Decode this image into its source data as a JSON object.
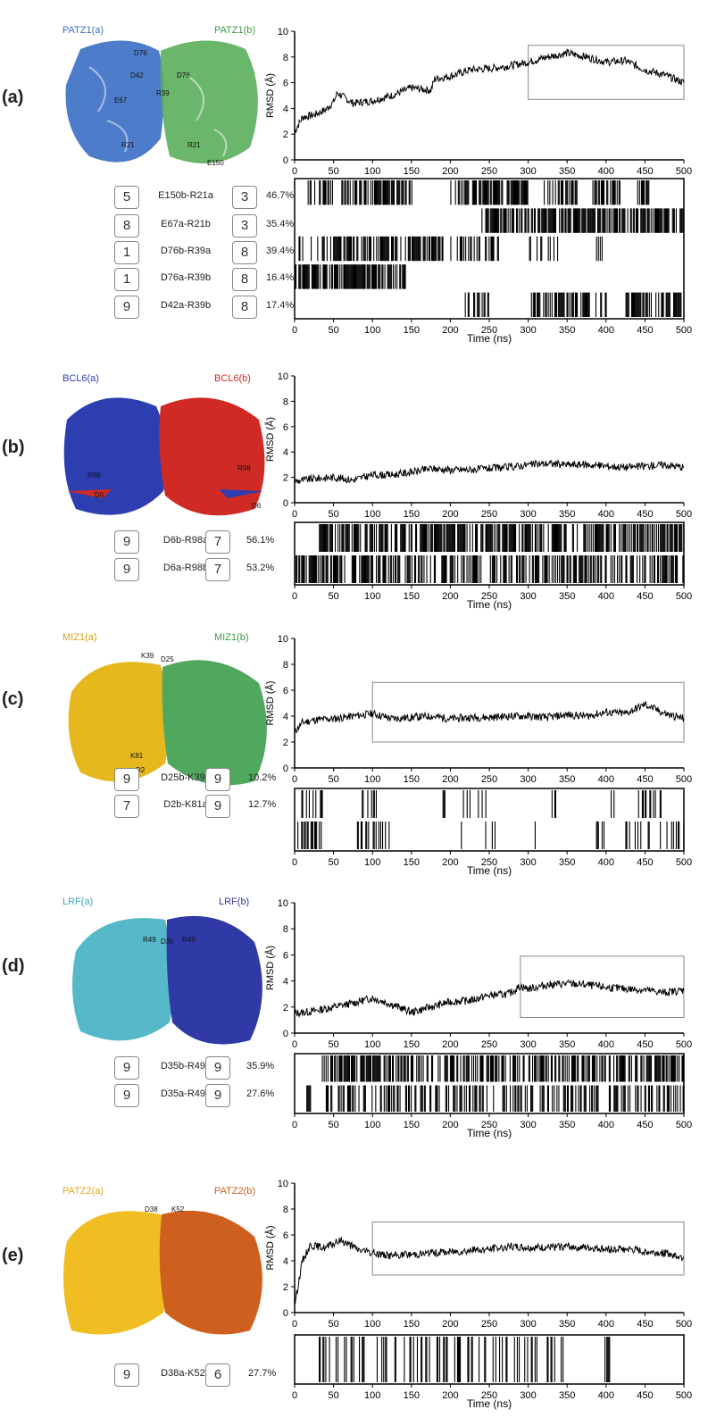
{
  "panels": [
    {
      "id": "a",
      "label": "(a)",
      "chain_a": {
        "name": "PATZ1(a)",
        "color": "#3a6fc4"
      },
      "chain_b": {
        "name": "PATZ1(b)",
        "color": "#5aae5a"
      },
      "residue_labels": [
        "D76",
        "D42",
        "D76",
        "R39",
        "E67",
        "R21",
        "R21",
        "E150"
      ],
      "bridges": [
        {
          "name": "E150b-R21a",
          "box_left": "5",
          "box_right": "3",
          "pct": "46.7%"
        },
        {
          "name": "E67a-R21b",
          "box_left": "8",
          "box_right": "3",
          "pct": "35.4%"
        },
        {
          "name": "D76b-R39a",
          "box_left": "1",
          "box_right": "8",
          "pct": "39.4%"
        },
        {
          "name": "D76a-R39b",
          "box_left": "1",
          "box_right": "8",
          "pct": "16.4%"
        },
        {
          "name": "D42a-R39b",
          "box_left": "9",
          "box_right": "8",
          "pct": "17.4%"
        }
      ]
    },
    {
      "id": "b",
      "label": "(b)",
      "chain_a": {
        "name": "BCL6(a)",
        "color": "#2d3fb0"
      },
      "chain_b": {
        "name": "BCL6(b)",
        "color": "#d02a24"
      },
      "residue_labels": [
        "R98",
        "D6",
        "R98",
        "D6"
      ],
      "bridges": [
        {
          "name": "D6b-R98a",
          "box_left": "9",
          "box_right": "7",
          "pct": "56.1%"
        },
        {
          "name": "D6a-R98b",
          "box_left": "9",
          "box_right": "7",
          "pct": "53.2%"
        }
      ]
    },
    {
      "id": "c",
      "label": "(c)",
      "chain_a": {
        "name": "MIZ1(a)",
        "color": "#e6b81e"
      },
      "chain_b": {
        "name": "MIZ1(b)",
        "color": "#4fa85e"
      },
      "residue_labels": [
        "K39",
        "D25",
        "K81",
        "D2"
      ],
      "bridges": [
        {
          "name": "D25b-K39a",
          "box_left": "9",
          "box_right": "9",
          "pct": "10.2%"
        },
        {
          "name": "D2b-K81a",
          "box_left": "7",
          "box_right": "9",
          "pct": "12.7%"
        }
      ]
    },
    {
      "id": "d",
      "label": "(d)",
      "chain_a": {
        "name": "LRF(a)",
        "color": "#55b9c9"
      },
      "chain_b": {
        "name": "LRF(b)",
        "color": "#2f3aa6"
      },
      "residue_labels": [
        "R49",
        "D35",
        "R49"
      ],
      "bridges": [
        {
          "name": "D35b-R49a",
          "box_left": "9",
          "box_right": "9",
          "pct": "35.9%"
        },
        {
          "name": "D35a-R49b",
          "box_left": "9",
          "box_right": "9",
          "pct": "27.6%"
        }
      ]
    },
    {
      "id": "e",
      "label": "(e)",
      "chain_a": {
        "name": "PATZ2(a)",
        "color": "#f0be22"
      },
      "chain_b": {
        "name": "PATZ2(b)",
        "color": "#cf5f1e"
      },
      "residue_labels": [
        "D38",
        "K52"
      ],
      "bridges": [
        {
          "name": "D38a-K52b",
          "box_left": "9",
          "box_right": "6",
          "pct": "27.7%"
        }
      ]
    }
  ],
  "chart_data": [
    {
      "panel": "a",
      "type": "line",
      "ylabel": "RMSD (Å)",
      "xlim": [
        0,
        500
      ],
      "ylim": [
        0,
        10
      ],
      "xticks": [
        0,
        50,
        100,
        150,
        200,
        250,
        300,
        350,
        400,
        450,
        500
      ],
      "yticks": [
        0,
        2,
        4,
        6,
        8,
        10
      ],
      "x": [
        0,
        10,
        25,
        40,
        50,
        55,
        75,
        100,
        125,
        150,
        175,
        180,
        200,
        225,
        250,
        275,
        300,
        325,
        350,
        375,
        400,
        425,
        450,
        475,
        500
      ],
      "y": [
        2.2,
        3.3,
        3.5,
        3.9,
        4.5,
        5.2,
        4.4,
        4.6,
        5.0,
        5.6,
        5.4,
        6.3,
        6.5,
        7.0,
        7.1,
        7.3,
        7.6,
        8.0,
        8.3,
        8.0,
        7.6,
        7.7,
        7.0,
        6.6,
        6.0
      ],
      "highlight_box": {
        "x": [
          300,
          500
        ],
        "y": [
          4.7,
          8.9
        ]
      }
    },
    {
      "panel": "a",
      "type": "heatmap",
      "xlabel": "Time (ns)",
      "xlim": [
        0,
        500
      ],
      "xticks": [
        0,
        50,
        100,
        150,
        200,
        250,
        300,
        350,
        400,
        450,
        500
      ],
      "rows": [
        {
          "name": "E150b-R21a",
          "segments": [
            [
              12,
              50,
              0.65
            ],
            [
              60,
              150,
              0.6
            ],
            [
              200,
              225,
              0.55
            ],
            [
              228,
              300,
              0.75
            ],
            [
              320,
              365,
              0.55
            ],
            [
              380,
              420,
              0.5
            ],
            [
              440,
              455,
              0.5
            ]
          ]
        },
        {
          "name": "E67a-R21b",
          "segments": [
            [
              240,
              500,
              0.7
            ]
          ]
        },
        {
          "name": "D76b-R39a",
          "segments": [
            [
              5,
              30,
              0.3
            ],
            [
              35,
              190,
              0.7
            ],
            [
              200,
              262,
              0.45
            ],
            [
              300,
              340,
              0.3
            ],
            [
              380,
              395,
              0.3
            ]
          ]
        },
        {
          "name": "D76a-R39b",
          "segments": [
            [
              0,
              142,
              0.8
            ]
          ]
        },
        {
          "name": "D42a-R39b",
          "segments": [
            [
              215,
              250,
              0.3
            ],
            [
              300,
              400,
              0.6
            ],
            [
              425,
              500,
              0.55
            ]
          ]
        }
      ]
    },
    {
      "panel": "b",
      "type": "line",
      "ylabel": "RMSD (Å)",
      "xlim": [
        0,
        500
      ],
      "ylim": [
        0,
        10
      ],
      "xticks": [
        0,
        50,
        100,
        150,
        200,
        250,
        300,
        350,
        400,
        450,
        500
      ],
      "yticks": [
        0,
        2,
        4,
        6,
        8,
        10
      ],
      "x": [
        0,
        25,
        50,
        75,
        100,
        125,
        150,
        175,
        200,
        225,
        250,
        275,
        300,
        325,
        350,
        375,
        400,
        425,
        450,
        475,
        500
      ],
      "y": [
        1.7,
        1.9,
        2.0,
        1.8,
        2.2,
        2.2,
        2.4,
        2.7,
        2.6,
        2.6,
        2.7,
        2.8,
        3.0,
        3.1,
        3.0,
        3.0,
        2.9,
        2.8,
        2.9,
        3.0,
        2.8
      ]
    },
    {
      "panel": "b",
      "type": "heatmap",
      "xlabel": "Time (ns)",
      "xlim": [
        0,
        500
      ],
      "xticks": [
        0,
        50,
        100,
        150,
        200,
        250,
        300,
        350,
        400,
        450,
        500
      ],
      "rows": [
        {
          "name": "D6b-R98a",
          "segments": [
            [
              30,
              500,
              0.6
            ]
          ]
        },
        {
          "name": "D6a-R98b",
          "segments": [
            [
              0,
              500,
              0.55
            ]
          ]
        }
      ]
    },
    {
      "panel": "c",
      "type": "line",
      "ylabel": "RMSD (Å)",
      "xlim": [
        0,
        500
      ],
      "ylim": [
        0,
        10
      ],
      "xticks": [
        0,
        50,
        100,
        150,
        200,
        250,
        300,
        350,
        400,
        450,
        500
      ],
      "yticks": [
        0,
        2,
        4,
        6,
        8,
        10
      ],
      "x": [
        0,
        10,
        25,
        50,
        75,
        100,
        125,
        150,
        175,
        200,
        225,
        250,
        275,
        300,
        325,
        350,
        375,
        400,
        425,
        450,
        475,
        500
      ],
      "y": [
        2.8,
        3.5,
        3.7,
        3.8,
        4.0,
        4.2,
        3.8,
        3.9,
        4.0,
        3.8,
        3.9,
        3.9,
        4.0,
        4.0,
        3.9,
        4.1,
        4.0,
        4.3,
        4.2,
        4.9,
        4.2,
        3.8
      ],
      "highlight_box": {
        "x": [
          100,
          500
        ],
        "y": [
          2.0,
          6.6
        ]
      }
    },
    {
      "panel": "c",
      "type": "heatmap",
      "xlabel": "Time (ns)",
      "xlim": [
        0,
        500
      ],
      "xticks": [
        0,
        50,
        100,
        150,
        200,
        250,
        300,
        350,
        400,
        450,
        500
      ],
      "rows": [
        {
          "name": "D25b-K39a",
          "segments": [
            [
              5,
              40,
              0.35
            ],
            [
              85,
              110,
              0.4
            ],
            [
              190,
              200,
              0.3
            ],
            [
              215,
              245,
              0.3
            ],
            [
              330,
              340,
              0.3
            ],
            [
              400,
              410,
              0.2
            ],
            [
              440,
              470,
              0.3
            ]
          ]
        },
        {
          "name": "D2b-K81a",
          "segments": [
            [
              0,
              35,
              0.4
            ],
            [
              80,
              130,
              0.45
            ],
            [
              210,
              220,
              0.2
            ],
            [
              240,
              260,
              0.25
            ],
            [
              300,
              310,
              0.2
            ],
            [
              380,
              400,
              0.2
            ],
            [
              420,
              500,
              0.3
            ]
          ]
        }
      ]
    },
    {
      "panel": "d",
      "type": "line",
      "ylabel": "RMSD (Å)",
      "xlim": [
        0,
        500
      ],
      "ylim": [
        0,
        10
      ],
      "xticks": [
        0,
        50,
        100,
        150,
        200,
        250,
        300,
        350,
        400,
        450,
        500
      ],
      "yticks": [
        0,
        2,
        4,
        6,
        8,
        10
      ],
      "x": [
        0,
        25,
        50,
        75,
        100,
        125,
        150,
        175,
        200,
        225,
        250,
        275,
        290,
        300,
        325,
        350,
        375,
        400,
        425,
        450,
        475,
        500
      ],
      "y": [
        1.5,
        1.7,
        2.0,
        2.3,
        2.7,
        2.2,
        1.6,
        2.0,
        2.4,
        2.5,
        2.9,
        3.0,
        3.6,
        3.4,
        3.7,
        3.8,
        3.7,
        3.5,
        3.4,
        3.3,
        3.1,
        3.3
      ],
      "highlight_box": {
        "x": [
          290,
          500
        ],
        "y": [
          1.2,
          5.9
        ]
      }
    },
    {
      "panel": "d",
      "type": "heatmap",
      "xlabel": "Time (ns)",
      "xlim": [
        0,
        500
      ],
      "xticks": [
        0,
        50,
        100,
        150,
        200,
        250,
        300,
        350,
        400,
        450,
        500
      ],
      "rows": [
        {
          "name": "D35b-R49a",
          "segments": [
            [
              35,
              500,
              0.6
            ]
          ]
        },
        {
          "name": "D35a-R49b",
          "segments": [
            [
              15,
              20,
              0.8
            ],
            [
              40,
              500,
              0.45
            ]
          ]
        }
      ]
    },
    {
      "panel": "e",
      "type": "line",
      "ylabel": "RMSD (Å)",
      "xlim": [
        0,
        500
      ],
      "ylim": [
        0,
        10
      ],
      "xticks": [
        0,
        50,
        100,
        150,
        200,
        250,
        300,
        350,
        400,
        450,
        500
      ],
      "yticks": [
        0,
        2,
        4,
        6,
        8,
        10
      ],
      "x": [
        0,
        10,
        20,
        40,
        60,
        80,
        100,
        125,
        150,
        175,
        200,
        225,
        250,
        275,
        300,
        325,
        350,
        375,
        400,
        425,
        450,
        475,
        500
      ],
      "y": [
        0.6,
        4.0,
        5.2,
        5.0,
        5.6,
        4.9,
        4.6,
        4.4,
        4.5,
        4.6,
        4.7,
        4.8,
        4.9,
        5.1,
        5.0,
        5.0,
        5.1,
        5.0,
        4.9,
        4.9,
        4.7,
        4.6,
        4.3
      ],
      "highlight_box": {
        "x": [
          100,
          500
        ],
        "y": [
          2.9,
          7.0
        ]
      }
    },
    {
      "panel": "e",
      "type": "heatmap",
      "xlabel": "Time (ns)",
      "xlim": [
        0,
        500
      ],
      "xticks": [
        0,
        50,
        100,
        150,
        200,
        250,
        300,
        350,
        400,
        450,
        500
      ],
      "rows": [
        {
          "name": "D38a-K52b",
          "segments": [
            [
              25,
              350,
              0.3
            ],
            [
              398,
              405,
              0.8
            ]
          ]
        }
      ]
    }
  ]
}
